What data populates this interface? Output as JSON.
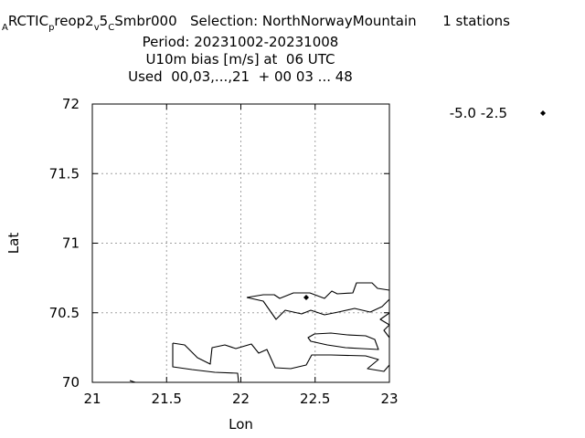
{
  "header": {
    "line1": {
      "pre_sub": "A",
      "part1": "RCTIC",
      "sub1": "p",
      "part2": "reop2",
      "sub2": "v",
      "part3": "5",
      "sub3": "C",
      "part4": "Smbr000   Selection: NorthNorwayMountain      1 stations"
    },
    "line2": "Period: 20231002-20231008",
    "line3": "U10m bias [m/s] at  06 UTC",
    "line4": "Used  00,03,...,21  + 00 03 ... 48"
  },
  "chart_data": {
    "type": "scatter",
    "xlabel": "Lon",
    "ylabel": "Lat",
    "xlim": [
      21,
      23
    ],
    "ylim": [
      70,
      72
    ],
    "xticks": [
      "21",
      "21.5",
      "22",
      "22.5",
      "23"
    ],
    "yticks": [
      "70",
      "70.5",
      "71",
      "71.5",
      "72"
    ],
    "grid": true,
    "legend_position": "right",
    "series": [
      {
        "name": "-5.0 -2.5",
        "marker": "diamond",
        "color": "#000000",
        "points": [
          {
            "x": 22.44,
            "y": 70.61
          }
        ]
      }
    ]
  }
}
